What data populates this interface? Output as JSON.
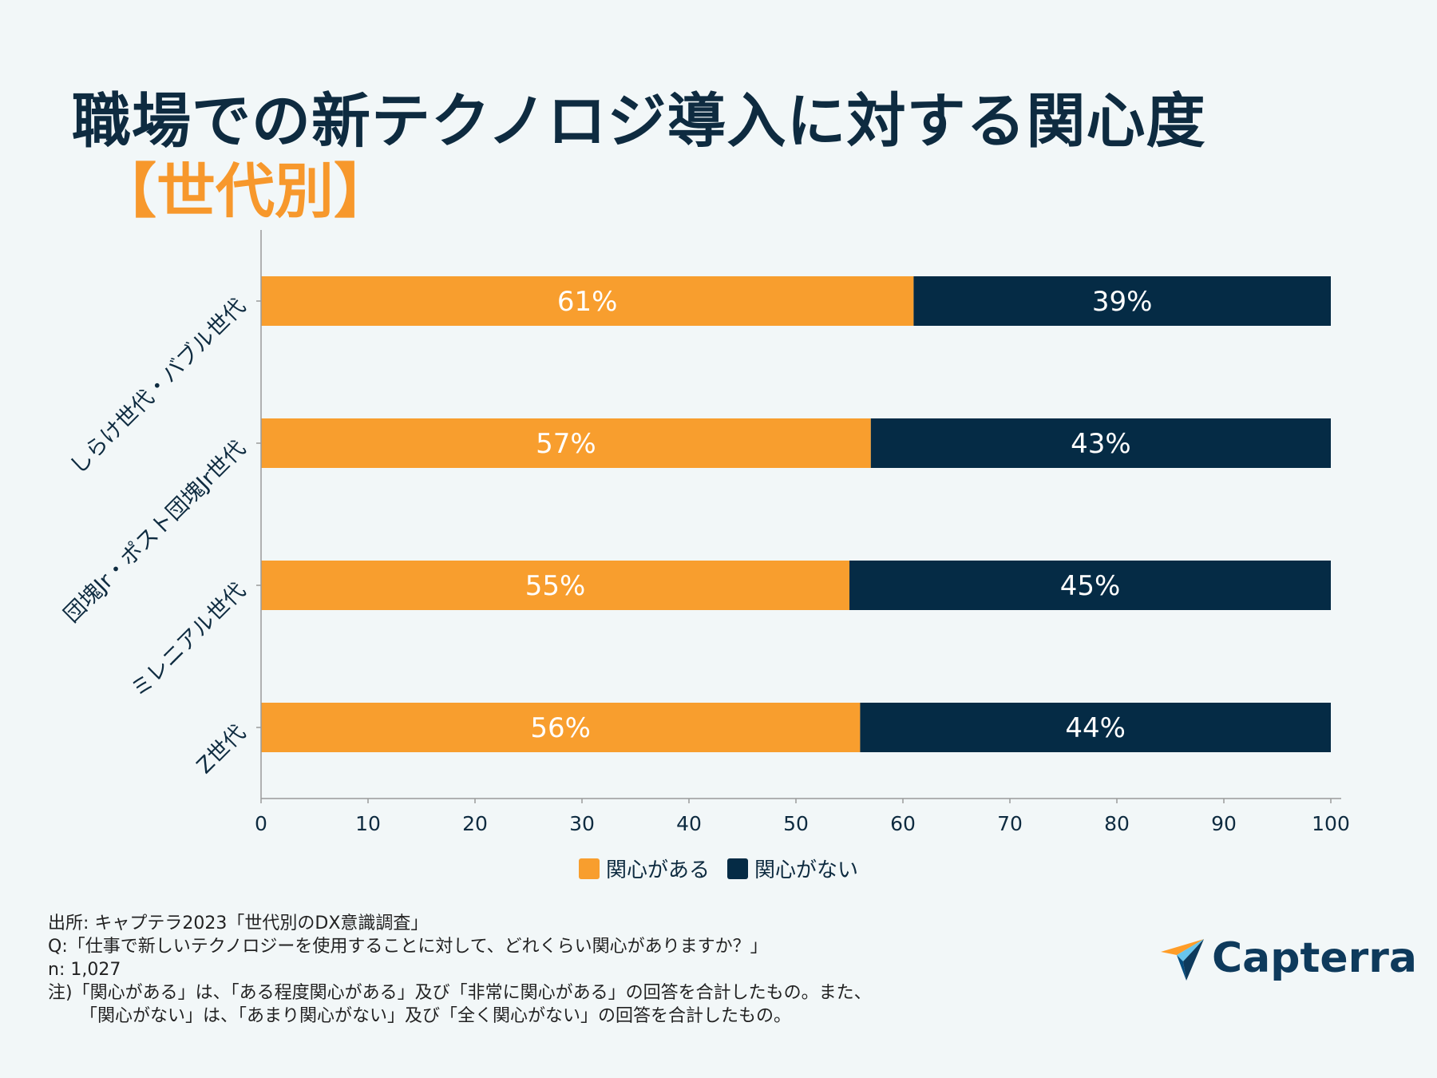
{
  "title": "職場での新テクノロジ導入に対する関心度",
  "subtitle": "【世代別】",
  "chart_data": {
    "type": "bar",
    "orientation": "horizontal",
    "stacked": true,
    "categories": [
      "しらけ世代・バブル世代",
      "団塊Jr・ポスト団塊Jr世代",
      "ミレニアル世代",
      "Z世代"
    ],
    "series": [
      {
        "name": "関心がある",
        "values": [
          61,
          57,
          55,
          56
        ],
        "labels": [
          "61%",
          "57%",
          "55%",
          "56%"
        ],
        "color": "#f89e2e"
      },
      {
        "name": "関心がない",
        "values": [
          39,
          43,
          45,
          44
        ],
        "labels": [
          "39%",
          "43%",
          "45%",
          "44%"
        ],
        "color": "#052b45"
      }
    ],
    "xlim": [
      0,
      100
    ],
    "xticks": [
      "0",
      "10",
      "20",
      "30",
      "40",
      "50",
      "60",
      "70",
      "80",
      "90",
      "100"
    ],
    "legend_position": "bottom-center"
  },
  "notes": {
    "source": "出所: キャプテラ2023「世代別のDX意識調査」",
    "question": "Q:「仕事で新しいテクノロジーを使用することに対して、どれくらい関心がありますか？」",
    "n": "n: 1,027",
    "note1": "注)「関心がある」は、「ある程度関心がある」及び「非常に関心がある」の回答を合計したもの。また、",
    "note2": "「関心がない」は、「あまり関心がない」及び「全く関心がない」の回答を合計したもの。"
  },
  "logo": {
    "name": "Capterra"
  },
  "colors": {
    "accent": "#f7982c",
    "navy": "#0e2b40"
  }
}
